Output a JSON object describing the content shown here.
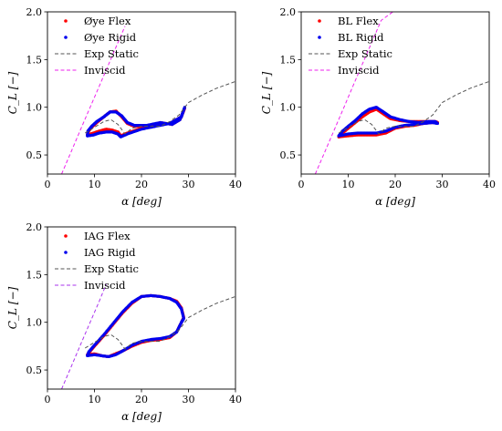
{
  "chart_data": [
    {
      "type": "line",
      "panel": "top-left",
      "xlabel": "α [deg]",
      "ylabel": "C_L [−]",
      "xlim": [
        0,
        40
      ],
      "ylim": [
        0.3,
        2.0
      ],
      "xticks": [
        "0",
        "10",
        "20",
        "30",
        "40"
      ],
      "yticks": [
        "0.5",
        "1.0",
        "1.5",
        "2.0"
      ],
      "legend_position": "top-left",
      "series": [
        {
          "name": "Øye Flex",
          "color": "#ff0000",
          "style": "dots",
          "x": [
            8.5,
            9.8,
            11,
            12.5,
            13.8,
            15,
            15.6,
            17,
            20,
            23,
            26,
            28.5,
            29.2,
            28.2,
            26.5,
            24,
            21,
            18.5,
            17,
            15.8,
            14.6,
            13.3,
            12,
            10.5,
            9.4,
            8.6,
            8.5
          ],
          "y": [
            0.71,
            0.73,
            0.75,
            0.77,
            0.76,
            0.74,
            0.7,
            0.73,
            0.78,
            0.81,
            0.83,
            0.9,
            0.99,
            0.87,
            0.82,
            0.84,
            0.8,
            0.8,
            0.83,
            0.9,
            0.96,
            0.95,
            0.9,
            0.84,
            0.79,
            0.74,
            0.71
          ]
        },
        {
          "name": "Øye Rigid",
          "color": "#0000ee",
          "style": "dots",
          "x": [
            8.5,
            9.8,
            11,
            12.5,
            13.8,
            15,
            15.6,
            17,
            20,
            23,
            26,
            28.5,
            29.2,
            28.2,
            26.5,
            24,
            21,
            18.5,
            17,
            15.8,
            14.6,
            13.3,
            12,
            10.5,
            9.4,
            8.6,
            8.5
          ],
          "y": [
            0.7,
            0.71,
            0.73,
            0.74,
            0.74,
            0.72,
            0.69,
            0.72,
            0.77,
            0.8,
            0.83,
            0.9,
            1.0,
            0.87,
            0.82,
            0.84,
            0.81,
            0.81,
            0.84,
            0.91,
            0.95,
            0.95,
            0.9,
            0.85,
            0.8,
            0.75,
            0.7
          ]
        },
        {
          "name": "Exp Static",
          "color": "#555555",
          "style": "dashed",
          "x": [
            8,
            10,
            12,
            13.5,
            15,
            16.5,
            18,
            20,
            22,
            24,
            26,
            28,
            30,
            33,
            36,
            40
          ],
          "y": [
            0.73,
            0.79,
            0.85,
            0.87,
            0.82,
            0.72,
            0.78,
            0.8,
            0.8,
            0.8,
            0.85,
            0.92,
            1.05,
            1.13,
            1.2,
            1.27
          ]
        },
        {
          "name": "Inviscid",
          "color": "#ee22ee",
          "style": "dashed",
          "x": [
            3,
            5,
            7,
            9,
            11,
            13,
            15,
            16.5
          ],
          "y": [
            0.3,
            0.53,
            0.76,
            0.99,
            1.22,
            1.45,
            1.68,
            1.85
          ]
        }
      ]
    },
    {
      "type": "line",
      "panel": "top-right",
      "xlabel": "α [deg]",
      "ylabel": "C_L [−]",
      "xlim": [
        0,
        40
      ],
      "ylim": [
        0.3,
        2.0
      ],
      "xticks": [
        "0",
        "10",
        "20",
        "30",
        "40"
      ],
      "yticks": [
        "0.5",
        "1.0",
        "1.5",
        "2.0"
      ],
      "legend_position": "top-left",
      "series": [
        {
          "name": "BL Flex",
          "color": "#ff0000",
          "style": "dots",
          "x": [
            8,
            10,
            12,
            14,
            16,
            18,
            20,
            22,
            24,
            26,
            28,
            29,
            28.5,
            27,
            25,
            23,
            21,
            19,
            17.5,
            16,
            14.5,
            13,
            11.5,
            10,
            8.8,
            8
          ],
          "y": [
            0.69,
            0.7,
            0.71,
            0.71,
            0.71,
            0.73,
            0.78,
            0.8,
            0.81,
            0.83,
            0.84,
            0.84,
            0.85,
            0.85,
            0.85,
            0.85,
            0.86,
            0.88,
            0.93,
            0.98,
            0.95,
            0.9,
            0.84,
            0.78,
            0.73,
            0.69
          ]
        },
        {
          "name": "BL Rigid",
          "color": "#0000ee",
          "style": "dots",
          "x": [
            8,
            10,
            12,
            14,
            16,
            18,
            20,
            22,
            24,
            26,
            28,
            29,
            28.5,
            27,
            25,
            23,
            21,
            19,
            17.5,
            16,
            14.5,
            13,
            11.5,
            10,
            8.8,
            8
          ],
          "y": [
            0.7,
            0.72,
            0.73,
            0.73,
            0.73,
            0.75,
            0.79,
            0.81,
            0.82,
            0.83,
            0.84,
            0.83,
            0.85,
            0.85,
            0.84,
            0.85,
            0.87,
            0.9,
            0.95,
            1.0,
            0.98,
            0.93,
            0.86,
            0.8,
            0.75,
            0.7
          ]
        },
        {
          "name": "Exp Static",
          "color": "#555555",
          "style": "dashed",
          "x": [
            8,
            10,
            12,
            13.5,
            15,
            16.5,
            18,
            20,
            22,
            24,
            26,
            28,
            30,
            33,
            36,
            40
          ],
          "y": [
            0.73,
            0.79,
            0.85,
            0.87,
            0.82,
            0.72,
            0.78,
            0.8,
            0.8,
            0.8,
            0.85,
            0.92,
            1.05,
            1.13,
            1.2,
            1.27
          ]
        },
        {
          "name": "Inviscid",
          "color": "#ee22ee",
          "style": "dashed",
          "x": [
            3,
            5,
            7,
            9,
            11,
            13,
            15,
            17,
            19.5
          ],
          "y": [
            0.3,
            0.53,
            0.76,
            0.99,
            1.22,
            1.45,
            1.68,
            1.91,
            2.0
          ]
        }
      ]
    },
    {
      "type": "line",
      "panel": "bottom-left",
      "xlabel": "α [deg]",
      "ylabel": "C_L [−]",
      "xlim": [
        0,
        40
      ],
      "ylim": [
        0.3,
        2.0
      ],
      "xticks": [
        "0",
        "10",
        "20",
        "30",
        "40"
      ],
      "yticks": [
        "0.5",
        "1.0",
        "1.5",
        "2.0"
      ],
      "legend_position": "top-left",
      "series": [
        {
          "name": "IAG Flex",
          "color": "#ff0000",
          "style": "dots",
          "x": [
            8.5,
            10,
            11.5,
            13,
            14.5,
            16,
            18,
            20,
            22,
            24,
            26,
            27.5,
            28.5,
            29,
            28.5,
            27.5,
            26,
            24,
            22,
            20,
            18,
            16,
            14,
            12,
            10,
            8.8,
            8.5
          ],
          "y": [
            0.66,
            0.67,
            0.65,
            0.64,
            0.67,
            0.7,
            0.75,
            0.79,
            0.81,
            0.82,
            0.84,
            0.9,
            1.0,
            1.05,
            1.15,
            1.22,
            1.25,
            1.27,
            1.28,
            1.27,
            1.2,
            1.1,
            0.98,
            0.86,
            0.75,
            0.68,
            0.66
          ]
        },
        {
          "name": "IAG Rigid",
          "color": "#0000ee",
          "style": "dots",
          "x": [
            8.5,
            10,
            11.5,
            13,
            14.5,
            16,
            18,
            20,
            22,
            24,
            26,
            27.5,
            28.5,
            29,
            28.5,
            27.5,
            26,
            24,
            22,
            20,
            18,
            16,
            14,
            12,
            10,
            8.8,
            8.5
          ],
          "y": [
            0.65,
            0.66,
            0.65,
            0.64,
            0.66,
            0.7,
            0.76,
            0.8,
            0.82,
            0.83,
            0.85,
            0.9,
            1.0,
            1.04,
            1.14,
            1.21,
            1.25,
            1.27,
            1.28,
            1.27,
            1.21,
            1.11,
            0.99,
            0.87,
            0.76,
            0.69,
            0.65
          ]
        },
        {
          "name": "Exp Static",
          "color": "#555555",
          "style": "dashed",
          "x": [
            8,
            10,
            12,
            13.5,
            15,
            16.5,
            18,
            20,
            22,
            24,
            26,
            28,
            30,
            33,
            36,
            40
          ],
          "y": [
            0.73,
            0.79,
            0.85,
            0.87,
            0.82,
            0.72,
            0.78,
            0.8,
            0.8,
            0.8,
            0.85,
            0.92,
            1.05,
            1.13,
            1.2,
            1.27
          ]
        },
        {
          "name": "Inviscid",
          "color": "#aa33ee",
          "style": "dashed",
          "x": [
            3,
            5,
            7,
            9,
            11,
            12.5
          ],
          "y": [
            0.3,
            0.53,
            0.76,
            0.99,
            1.22,
            1.4
          ]
        }
      ]
    }
  ]
}
